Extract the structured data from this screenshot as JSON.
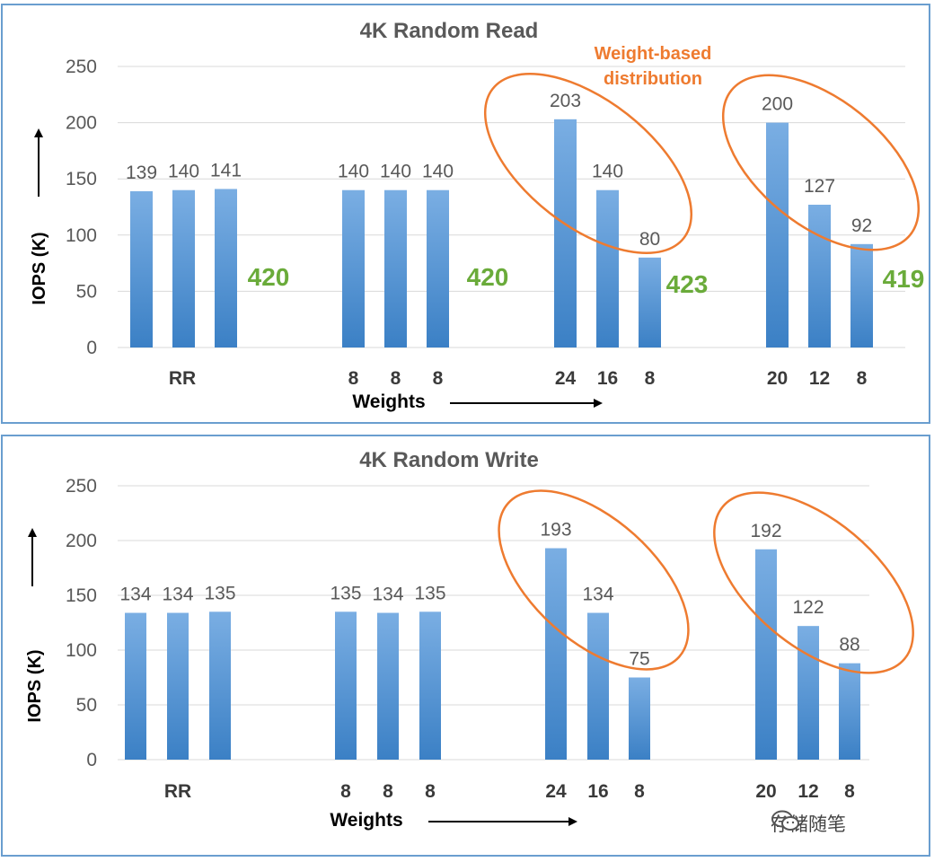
{
  "chart_data": [
    {
      "type": "bar",
      "title": "4K Random Read",
      "ylabel": "IOPS (K)",
      "xlabel": "Weights",
      "ylim": [
        0,
        250
      ],
      "yticks": [
        0,
        50,
        100,
        150,
        200,
        250
      ],
      "grid": true,
      "groups": [
        {
          "label": "RR",
          "weights": [
            "",
            "",
            ""
          ],
          "values": [
            139,
            140,
            141
          ],
          "total": "420"
        },
        {
          "label": "",
          "weights": [
            "8",
            "8",
            "8"
          ],
          "values": [
            140,
            140,
            140
          ],
          "total": "420"
        },
        {
          "label": "",
          "weights": [
            "24",
            "16",
            "8"
          ],
          "values": [
            203,
            140,
            80
          ],
          "total": "423",
          "highlighted": true
        },
        {
          "label": "",
          "weights": [
            "20",
            "12",
            "8"
          ],
          "values": [
            200,
            127,
            92
          ],
          "total": "419",
          "highlighted": true
        }
      ],
      "annotation": "Weight-based distribution"
    },
    {
      "type": "bar",
      "title": "4K Random Write",
      "ylabel": "IOPS (K)",
      "xlabel": "Weights",
      "ylim": [
        0,
        250
      ],
      "yticks": [
        0,
        50,
        100,
        150,
        200,
        250
      ],
      "grid": true,
      "groups": [
        {
          "label": "RR",
          "weights": [
            "",
            "",
            ""
          ],
          "values": [
            134,
            134,
            135
          ]
        },
        {
          "label": "",
          "weights": [
            "8",
            "8",
            "8"
          ],
          "values": [
            135,
            134,
            135
          ]
        },
        {
          "label": "",
          "weights": [
            "24",
            "16",
            "8"
          ],
          "values": [
            193,
            134,
            75
          ],
          "highlighted": true
        },
        {
          "label": "",
          "weights": [
            "20",
            "12",
            "8"
          ],
          "values": [
            192,
            122,
            88
          ],
          "highlighted": true
        }
      ]
    }
  ],
  "colors": {
    "bar_top": "#7aaee3",
    "bar_bottom": "#3b80c5",
    "total_text": "#6aab3a",
    "annotation": "#ee7b30",
    "ellipse": "#ee7b30",
    "grid": "#d9d9d9",
    "axis_text": "#595959",
    "panel_border": "#6a9ecf"
  },
  "watermark": {
    "text": "存储随笔",
    "icon": "wechat-icon"
  }
}
